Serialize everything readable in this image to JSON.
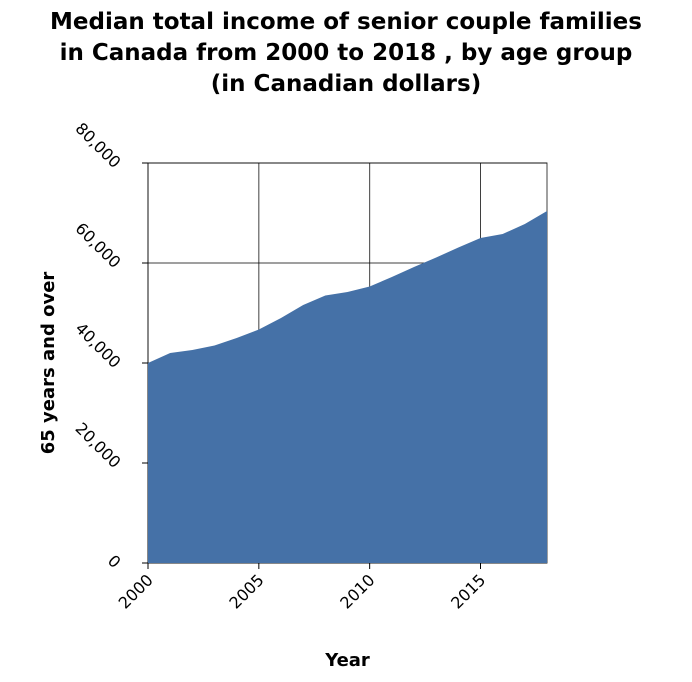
{
  "chart_data": {
    "type": "area",
    "title": [
      "Median total income of senior couple families",
      "in Canada from 2000 to 2018 , by age group",
      "(in Canadian dollars)"
    ],
    "xlabel": "Year",
    "ylabel": "65 years and over",
    "xlim": [
      2000,
      2018
    ],
    "ylim": [
      0,
      80000
    ],
    "x_ticks": [
      2000,
      2005,
      2010,
      2015
    ],
    "x_tick_labels": [
      "2000",
      "2005",
      "2010",
      "2015"
    ],
    "y_ticks": [
      0,
      20000,
      40000,
      60000,
      80000
    ],
    "y_tick_labels": [
      "0",
      "20,000",
      "40,000",
      "60,000",
      "80,000"
    ],
    "grid": true,
    "color": "#4571a7",
    "series": [
      {
        "x": [
          2000,
          2001,
          2002,
          2003,
          2004,
          2005,
          2006,
          2007,
          2008,
          2009,
          2010,
          2011,
          2012,
          2013,
          2014,
          2015,
          2016,
          2017,
          2018
        ],
        "values": [
          40000,
          42000,
          42600,
          43500,
          45000,
          46700,
          49000,
          51600,
          53500,
          54200,
          55300,
          57200,
          59200,
          61100,
          63100,
          65000,
          65800,
          67800,
          70400
        ]
      }
    ]
  }
}
